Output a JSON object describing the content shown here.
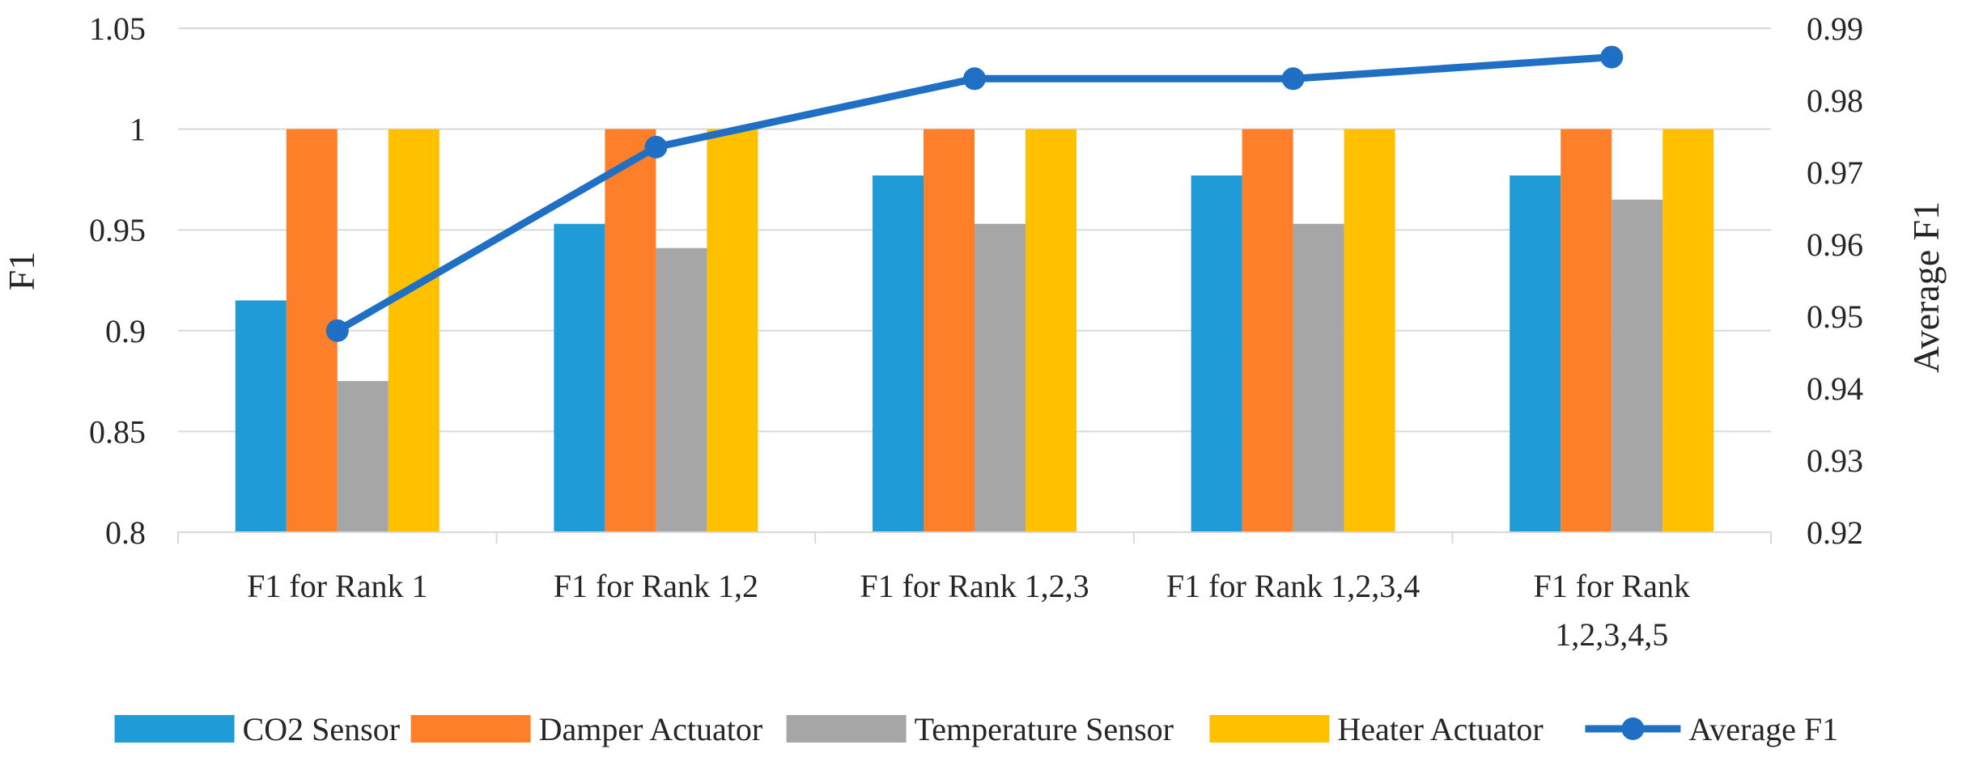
{
  "chart_data": {
    "type": "bar",
    "combo": "bar-with-line-secondary-axis",
    "categories": [
      [
        "F1 for Rank 1"
      ],
      [
        "F1 for Rank 1,2"
      ],
      [
        "F1 for Rank 1,2,3"
      ],
      [
        "F1 for Rank 1,2,3,4"
      ],
      [
        "F1 for Rank",
        "1,2,3,4,5"
      ]
    ],
    "series": [
      {
        "name": "CO2 Sensor",
        "type": "bar",
        "color": "#1f9bd7",
        "values": [
          0.915,
          0.953,
          0.977,
          0.977,
          0.977
        ]
      },
      {
        "name": "Damper Actuator",
        "type": "bar",
        "color": "#fe7f2a",
        "values": [
          1.0,
          1.0,
          1.0,
          1.0,
          1.0
        ]
      },
      {
        "name": "Temperature Sensor",
        "type": "bar",
        "color": "#a6a6a6",
        "values": [
          0.875,
          0.941,
          0.953,
          0.953,
          0.965
        ]
      },
      {
        "name": "Heater Actuator",
        "type": "bar",
        "color": "#ffc000",
        "values": [
          1.0,
          1.0,
          1.0,
          1.0,
          1.0
        ]
      },
      {
        "name": "Average F1",
        "type": "line",
        "axis": "secondary",
        "color": "#1f6fc5",
        "values": [
          0.948,
          0.9735,
          0.983,
          0.983,
          0.986
        ]
      }
    ],
    "ylabel": "F1",
    "ylim": [
      0.8,
      1.05
    ],
    "yticks": [
      "0.8",
      "0.85",
      "0.9",
      "0.95",
      "1",
      "1.05"
    ],
    "y2label": "Average F1",
    "y2lim": [
      0.92,
      0.99
    ],
    "y2ticks": [
      "0.92",
      "0.93",
      "0.94",
      "0.95",
      "0.96",
      "0.97",
      "0.98",
      "0.99"
    ],
    "grid": true,
    "legend": "bottom"
  }
}
